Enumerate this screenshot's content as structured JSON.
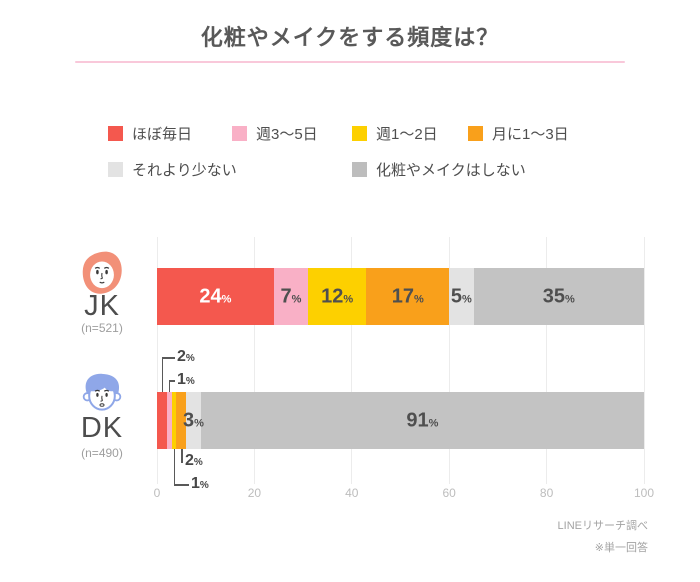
{
  "title": "化粧やメイクをする頻度は？",
  "title_underline_color": "#F9C8DA",
  "legend": {
    "items": [
      {
        "label": "ほぼ毎日",
        "color": "#F4584E"
      },
      {
        "label": "週3〜5日",
        "color": "#F9B0C6"
      },
      {
        "label": "週1〜2日",
        "color": "#FDD000"
      },
      {
        "label": "月に1〜3日",
        "color": "#F9A01B"
      },
      {
        "label": "それより少ない",
        "color": "#E3E3E3"
      },
      {
        "label": "化粧やメイクはしない",
        "color": "#BDBDBD"
      }
    ]
  },
  "chart_data": {
    "type": "bar",
    "subtype": "horizontal-stacked",
    "unit": "%",
    "xlim": [
      0,
      100
    ],
    "x_ticks": [
      0,
      20,
      40,
      60,
      80,
      100
    ],
    "grid": true,
    "legend_position": "top",
    "categories": [
      "ほぼ毎日",
      "週3〜5日",
      "週1〜2日",
      "月に1〜3日",
      "それより少ない",
      "化粧やメイクはしない"
    ],
    "colors": [
      "#F4584E",
      "#F9B0C6",
      "#FDD000",
      "#F9A01B",
      "#E3E3E3",
      "#C3C3C3"
    ],
    "rows": [
      {
        "label": "JK",
        "n_label": "(n=521)",
        "icon": "girl-avatar-icon",
        "icon_color": "#F29078",
        "values": [
          24,
          7,
          12,
          17,
          5,
          35
        ],
        "label_placement": [
          "inside",
          "inside",
          "inside",
          "inside",
          "inside",
          "inside"
        ]
      },
      {
        "label": "DK",
        "n_label": "(n=490)",
        "icon": "boy-avatar-icon",
        "icon_color": "#8FA7E8",
        "values": [
          2,
          1,
          1,
          2,
          3,
          91
        ],
        "label_placement": [
          "callout-above",
          "callout-above",
          "callout-below",
          "callout-below",
          "inside",
          "inside"
        ]
      }
    ]
  },
  "footer": {
    "source": "LINEリサーチ調べ",
    "note": "※単一回答"
  }
}
